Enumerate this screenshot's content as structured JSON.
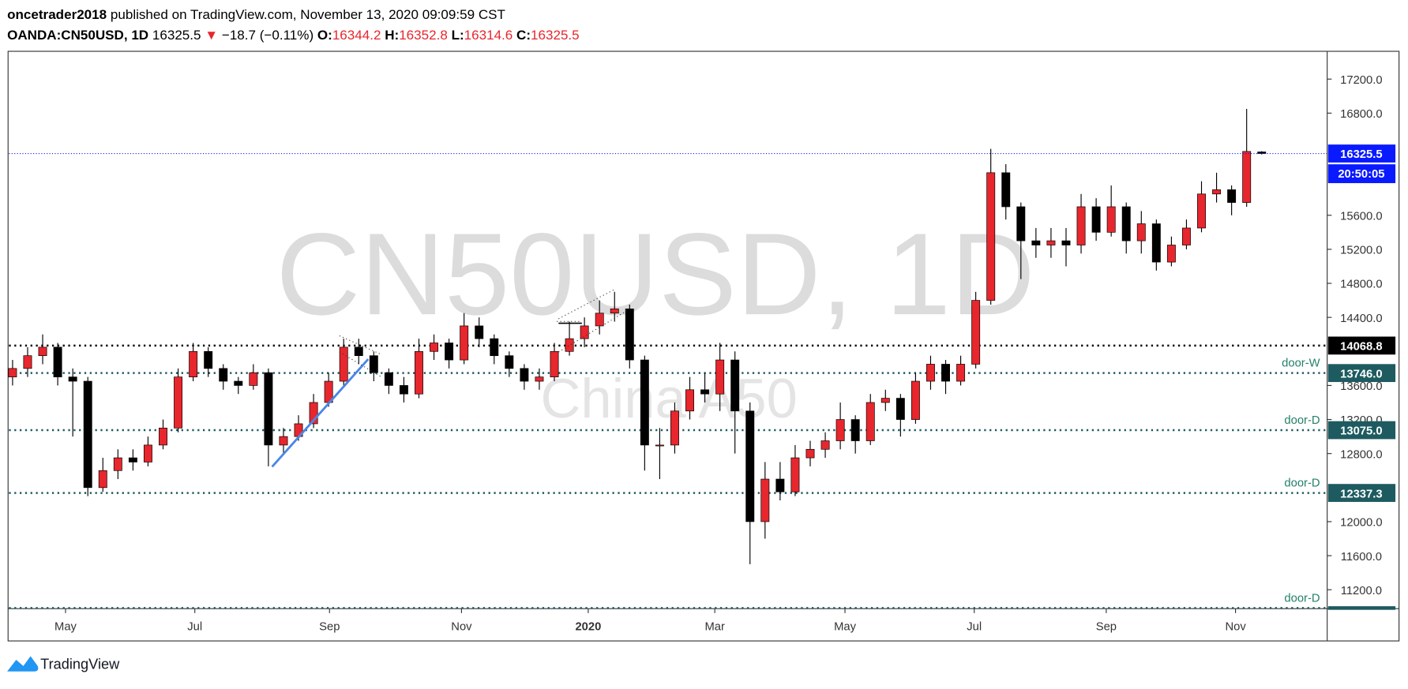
{
  "header": {
    "author": "oncetrader2018",
    "published": "published on TradingView.com, November 13, 2020 09:09:59 CST",
    "symbol": "OANDA:CN50USD, 1D",
    "arrow": "▼",
    "change": "−18.7 (−0.11%)",
    "o_label": "O:",
    "h_label": "H:",
    "l_label": "L:",
    "c_label": "C:"
  },
  "chart_data": {
    "type": "candlestick",
    "watermark": "CN50USD, 1D",
    "watermark_sub": "China A50",
    "up_color": "#e8262d",
    "down_color": "#000000",
    "open": [
      13700,
      13800,
      13950,
      14050,
      13700,
      13650,
      12400,
      12600,
      12750,
      12700,
      12900,
      13100,
      13700,
      14000,
      13800,
      13650,
      13600,
      13750,
      12900,
      13000,
      13150,
      13400,
      13650,
      14050,
      13950,
      13750,
      13600,
      13500,
      14000,
      14100,
      13900,
      14300,
      14150,
      13950,
      13800,
      13650,
      13700,
      14000,
      14150,
      14300,
      14450,
      14500,
      13900,
      12900,
      12900,
      13300,
      13550,
      13500,
      13900,
      13300,
      12000,
      12500,
      12350,
      12750,
      12850,
      12950,
      13200,
      12950,
      13400,
      13450,
      13200,
      13650,
      13850,
      13650,
      13850,
      14600,
      16100,
      15700,
      15300,
      15250,
      15300,
      15250,
      15700,
      15400,
      15700,
      15300,
      15500,
      15050,
      15250,
      15450,
      15850,
      15900,
      15750,
      16344.2
    ],
    "high": [
      13900,
      14050,
      14200,
      14100,
      13800,
      13700,
      12750,
      12850,
      12850,
      13000,
      13200,
      13800,
      14100,
      14050,
      13850,
      13700,
      13850,
      13800,
      13100,
      13250,
      13500,
      13750,
      14150,
      14150,
      14000,
      13800,
      13700,
      14150,
      14200,
      14150,
      14450,
      14400,
      14200,
      14000,
      13850,
      13800,
      14100,
      14350,
      14400,
      14600,
      14700,
      14550,
      13950,
      13100,
      13400,
      13700,
      13750,
      14100,
      14000,
      13400,
      12700,
      12700,
      12900,
      12950,
      13050,
      13400,
      13250,
      13500,
      13550,
      13500,
      13750,
      13950,
      13900,
      13950,
      14700,
      16380,
      16200,
      15750,
      15450,
      15450,
      15450,
      15850,
      15800,
      15950,
      15750,
      15650,
      15550,
      15350,
      15550,
      16000,
      16100,
      15950,
      16850,
      16352.8
    ],
    "low": [
      13600,
      13700,
      13850,
      13600,
      13000,
      12300,
      12350,
      12500,
      12600,
      12650,
      12850,
      13050,
      13650,
      13700,
      13550,
      13500,
      13550,
      12650,
      12800,
      12950,
      13100,
      13350,
      13600,
      13850,
      13650,
      13500,
      13400,
      13450,
      13900,
      13800,
      13850,
      14050,
      13850,
      13700,
      13550,
      13550,
      13650,
      13950,
      14050,
      14200,
      14350,
      13800,
      12600,
      12500,
      12800,
      13200,
      13400,
      13300,
      12800,
      11500,
      11800,
      12250,
      12300,
      12650,
      12750,
      12850,
      12800,
      12900,
      13300,
      13000,
      13150,
      13550,
      13500,
      13600,
      13800,
      14550,
      15550,
      14850,
      15100,
      15100,
      15000,
      15150,
      15300,
      15350,
      15150,
      15150,
      14950,
      15000,
      15200,
      15400,
      15750,
      15600,
      15700,
      16314.6
    ],
    "close": [
      13800,
      13950,
      14050,
      13700,
      13650,
      12400,
      12600,
      12750,
      12700,
      12900,
      13100,
      13700,
      14000,
      13800,
      13650,
      13600,
      13750,
      12900,
      13000,
      13150,
      13400,
      13650,
      14050,
      13950,
      13750,
      13600,
      13500,
      14000,
      14100,
      13900,
      14300,
      14150,
      13950,
      13800,
      13650,
      13700,
      14000,
      14150,
      14300,
      14450,
      14500,
      13900,
      12900,
      12900,
      13300,
      13550,
      13500,
      13900,
      13300,
      12000,
      12500,
      12350,
      12750,
      12850,
      12950,
      13200,
      12950,
      13400,
      13450,
      13200,
      13650,
      13850,
      13650,
      13850,
      14600,
      16100,
      15700,
      15300,
      15250,
      15300,
      15250,
      15700,
      15400,
      15700,
      15300,
      15500,
      15050,
      15250,
      15450,
      15850,
      15900,
      15750,
      16350,
      16325.5
    ],
    "ylim": [
      10978,
      17516
    ],
    "yticks": [
      {
        "value": 11200,
        "label": "11200.0"
      },
      {
        "value": 11600,
        "label": "11600.0"
      },
      {
        "value": 12000,
        "label": "12000.0"
      },
      {
        "value": 12800,
        "label": "12800.0"
      },
      {
        "value": 13200,
        "label": "13200.0"
      },
      {
        "value": 13600,
        "label": "13600.0"
      },
      {
        "value": 14400,
        "label": "14400.0"
      },
      {
        "value": 14800,
        "label": "14800.0"
      },
      {
        "value": 15200,
        "label": "15200.0"
      },
      {
        "value": 15600,
        "label": "15600.0"
      },
      {
        "value": 16800,
        "label": "16800.0"
      },
      {
        "value": 17200,
        "label": "17200.0"
      }
    ],
    "xticks": [
      {
        "value": 3.52,
        "label": "May"
      },
      {
        "value": 12.11,
        "label": "Jul"
      },
      {
        "value": 21.06,
        "label": "Sep"
      },
      {
        "value": 29.83,
        "label": "Nov"
      },
      {
        "value": 38.25,
        "label": "2020"
      },
      {
        "value": 46.66,
        "label": "Mar"
      },
      {
        "value": 55.31,
        "label": "May"
      },
      {
        "value": 63.9,
        "label": "Jul"
      },
      {
        "value": 72.67,
        "label": "Sep"
      },
      {
        "value": 81.26,
        "label": "Nov"
      }
    ],
    "levels": [
      {
        "price": 14068.8,
        "color": "#000000"
      },
      {
        "price": {
          "value": 13746,
          "label": "13746.0"
        },
        "name": "door-W",
        "color": "#1d5b60"
      },
      {
        "price": {
          "value": 13075,
          "label": "13075.0"
        },
        "name": "door-D",
        "color": "#1d5b60"
      },
      {
        "price": 12337.3,
        "name": "door-D",
        "color": "#1d5b60"
      },
      {
        "price": 10985,
        "name": "door-D",
        "color": "#1d5b60"
      }
    ],
    "last_price_color": "#0a1aff",
    "countdown": "20:50:05"
  },
  "footer": {
    "brand": "TradingView"
  }
}
